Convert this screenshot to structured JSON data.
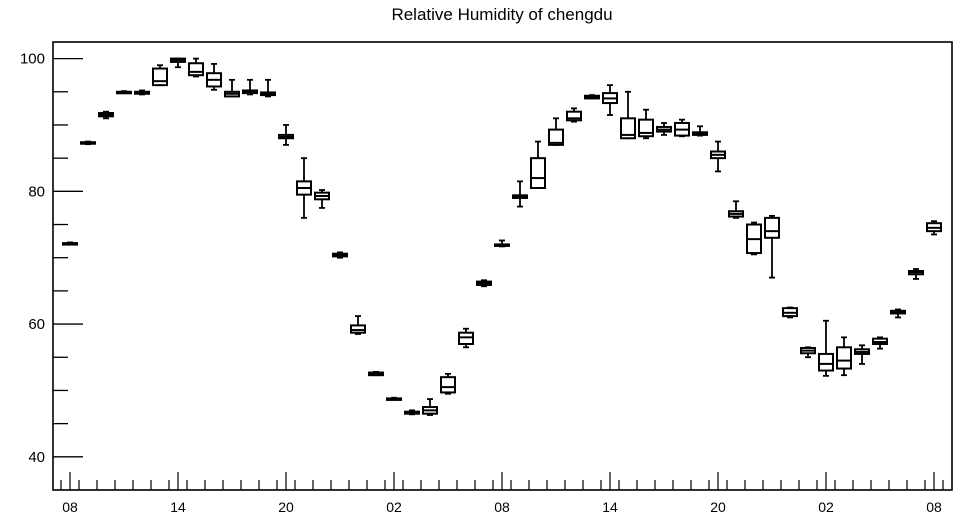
{
  "chart_data": {
    "type": "box",
    "title": "Relative Humidity of chengdu",
    "xlabel": "",
    "ylabel": "",
    "ylim": [
      35.0,
      102.5
    ],
    "yticks": [
      40,
      60,
      80,
      100
    ],
    "x_tick_labels": [
      "08",
      "14",
      "20",
      "02",
      "08",
      "14",
      "20",
      "02",
      "08"
    ],
    "x_label_hours": [
      0,
      6,
      12,
      18,
      24,
      30,
      36,
      42,
      48
    ],
    "grid": false,
    "line_color": "#000000",
    "boxes": [
      {
        "hour": 0,
        "min": 72.0,
        "q1": 72.0,
        "median": 72.1,
        "q3": 72.2,
        "max": 72.3
      },
      {
        "hour": 1,
        "min": 87.1,
        "q1": 87.2,
        "median": 87.3,
        "q3": 87.4,
        "max": 87.5
      },
      {
        "hour": 2,
        "min": 91.0,
        "q1": 91.3,
        "median": 91.5,
        "q3": 91.8,
        "max": 92.0
      },
      {
        "hour": 3,
        "min": 94.8,
        "q1": 94.8,
        "median": 94.9,
        "q3": 95.0,
        "max": 95.1
      },
      {
        "hour": 4,
        "min": 94.6,
        "q1": 94.7,
        "median": 94.9,
        "q3": 95.0,
        "max": 95.2
      },
      {
        "hour": 5,
        "min": 96.0,
        "q1": 96.0,
        "median": 96.6,
        "q3": 98.5,
        "max": 99.0
      },
      {
        "hour": 6,
        "min": 98.7,
        "q1": 99.5,
        "median": 99.8,
        "q3": 100.0,
        "max": 100.0
      },
      {
        "hour": 7,
        "min": 97.3,
        "q1": 97.5,
        "median": 98.0,
        "q3": 99.3,
        "max": 100.0
      },
      {
        "hour": 8,
        "min": 95.3,
        "q1": 95.8,
        "median": 96.8,
        "q3": 97.8,
        "max": 99.2
      },
      {
        "hour": 9,
        "min": 94.3,
        "q1": 94.3,
        "median": 94.7,
        "q3": 95.0,
        "max": 96.8
      },
      {
        "hour": 10,
        "min": 94.6,
        "q1": 94.8,
        "median": 95.0,
        "q3": 95.2,
        "max": 96.8
      },
      {
        "hour": 11,
        "min": 94.3,
        "q1": 94.5,
        "median": 94.7,
        "q3": 94.9,
        "max": 96.8
      },
      {
        "hour": 12,
        "min": 87.0,
        "q1": 88.0,
        "median": 88.2,
        "q3": 88.5,
        "max": 90.0
      },
      {
        "hour": 13,
        "min": 76.0,
        "q1": 79.5,
        "median": 80.5,
        "q3": 81.5,
        "max": 85.0
      },
      {
        "hour": 14,
        "min": 77.5,
        "q1": 78.8,
        "median": 79.3,
        "q3": 79.8,
        "max": 80.2
      },
      {
        "hour": 15,
        "min": 70.0,
        "q1": 70.2,
        "median": 70.4,
        "q3": 70.6,
        "max": 70.8
      },
      {
        "hour": 16,
        "min": 58.5,
        "q1": 58.7,
        "median": 59.1,
        "q3": 59.8,
        "max": 61.2
      },
      {
        "hour": 17,
        "min": 52.3,
        "q1": 52.3,
        "median": 52.5,
        "q3": 52.7,
        "max": 52.8
      },
      {
        "hour": 18,
        "min": 48.6,
        "q1": 48.6,
        "median": 48.7,
        "q3": 48.8,
        "max": 48.9
      },
      {
        "hour": 19,
        "min": 46.4,
        "q1": 46.5,
        "median": 46.7,
        "q3": 46.8,
        "max": 47.0
      },
      {
        "hour": 20,
        "min": 46.3,
        "q1": 46.5,
        "median": 47.0,
        "q3": 47.5,
        "max": 48.7
      },
      {
        "hour": 21,
        "min": 49.5,
        "q1": 49.7,
        "median": 50.5,
        "q3": 52.0,
        "max": 52.5
      },
      {
        "hour": 22,
        "min": 56.5,
        "q1": 57.0,
        "median": 58.0,
        "q3": 58.7,
        "max": 59.3
      },
      {
        "hour": 23,
        "min": 65.7,
        "q1": 65.9,
        "median": 66.2,
        "q3": 66.4,
        "max": 66.6
      },
      {
        "hour": 24,
        "min": 71.7,
        "q1": 71.8,
        "median": 71.9,
        "q3": 72.0,
        "max": 72.6
      },
      {
        "hour": 25,
        "min": 77.7,
        "q1": 79.0,
        "median": 79.2,
        "q3": 79.4,
        "max": 81.5
      },
      {
        "hour": 26,
        "min": 80.5,
        "q1": 80.5,
        "median": 82.0,
        "q3": 85.0,
        "max": 87.5
      },
      {
        "hour": 27,
        "min": 87.0,
        "q1": 87.0,
        "median": 87.3,
        "q3": 89.3,
        "max": 91.0
      },
      {
        "hour": 28,
        "min": 90.5,
        "q1": 90.7,
        "median": 91.0,
        "q3": 92.0,
        "max": 92.5
      },
      {
        "hour": 29,
        "min": 94.0,
        "q1": 94.0,
        "median": 94.2,
        "q3": 94.4,
        "max": 94.5
      },
      {
        "hour": 30,
        "min": 91.5,
        "q1": 93.3,
        "median": 94.0,
        "q3": 94.8,
        "max": 96.0
      },
      {
        "hour": 31,
        "min": 88.0,
        "q1": 88.0,
        "median": 88.5,
        "q3": 91.0,
        "max": 95.0
      },
      {
        "hour": 32,
        "min": 88.0,
        "q1": 88.3,
        "median": 88.8,
        "q3": 90.8,
        "max": 92.3
      },
      {
        "hour": 33,
        "min": 88.5,
        "q1": 89.0,
        "median": 89.3,
        "q3": 89.7,
        "max": 90.3
      },
      {
        "hour": 34,
        "min": 88.3,
        "q1": 88.4,
        "median": 89.3,
        "q3": 90.3,
        "max": 90.8
      },
      {
        "hour": 35,
        "min": 88.4,
        "q1": 88.5,
        "median": 88.7,
        "q3": 88.9,
        "max": 89.8
      },
      {
        "hour": 36,
        "min": 83.0,
        "q1": 85.0,
        "median": 85.5,
        "q3": 86.0,
        "max": 87.5
      },
      {
        "hour": 37,
        "min": 76.0,
        "q1": 76.2,
        "median": 76.6,
        "q3": 77.0,
        "max": 78.5
      },
      {
        "hour": 38,
        "min": 70.5,
        "q1": 70.7,
        "median": 72.8,
        "q3": 75.0,
        "max": 75.3
      },
      {
        "hour": 39,
        "min": 67.0,
        "q1": 73.0,
        "median": 74.0,
        "q3": 76.0,
        "max": 76.3
      },
      {
        "hour": 40,
        "min": 61.0,
        "q1": 61.2,
        "median": 61.7,
        "q3": 62.4,
        "max": 62.5
      },
      {
        "hour": 41,
        "min": 55.0,
        "q1": 55.6,
        "median": 56.0,
        "q3": 56.4,
        "max": 56.5
      },
      {
        "hour": 42,
        "min": 52.2,
        "q1": 53.0,
        "median": 54.0,
        "q3": 55.5,
        "max": 60.5
      },
      {
        "hour": 43,
        "min": 52.3,
        "q1": 53.3,
        "median": 54.5,
        "q3": 56.5,
        "max": 58.0
      },
      {
        "hour": 44,
        "min": 54.0,
        "q1": 55.5,
        "median": 55.8,
        "q3": 56.2,
        "max": 56.8
      },
      {
        "hour": 45,
        "min": 56.3,
        "q1": 57.0,
        "median": 57.3,
        "q3": 57.8,
        "max": 58.0
      },
      {
        "hour": 46,
        "min": 61.0,
        "q1": 61.6,
        "median": 61.8,
        "q3": 62.0,
        "max": 62.2
      },
      {
        "hour": 47,
        "min": 66.8,
        "q1": 67.5,
        "median": 67.8,
        "q3": 68.0,
        "max": 68.3
      },
      {
        "hour": 48,
        "min": 73.5,
        "q1": 74.0,
        "median": 74.5,
        "q3": 75.2,
        "max": 75.5
      }
    ]
  }
}
